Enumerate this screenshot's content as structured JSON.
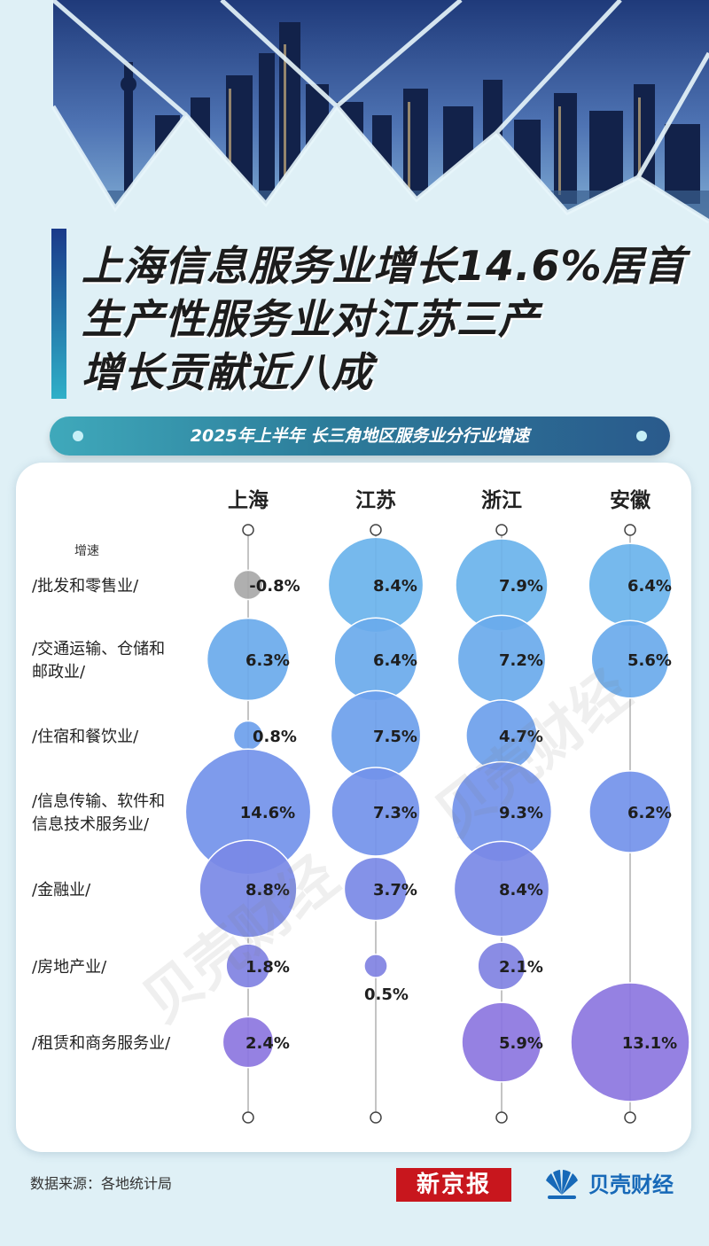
{
  "header": {
    "title_lines": [
      "上海信息服务业增长14.6%居首",
      "生产性服务业对江苏三产",
      "增长贡献近八成"
    ]
  },
  "subtitle": "2025年上半年 长三角地区服务业分行业增速",
  "chart_data": {
    "type": "bubble",
    "title": "2025年上半年 长三角地区服务业分行业增速",
    "row_axis_label": "增速",
    "columns": [
      "上海",
      "江苏",
      "浙江",
      "安徽"
    ],
    "rows": [
      "/批发和零售业/",
      "/交通运输、仓储和\n邮政业/",
      "/住宿和餐饮业/",
      "/信息传输、软件和\n信息技术服务业/",
      "/金融业/",
      "/房地产业/",
      "/租赁和商务服务业/"
    ],
    "values": [
      [
        -0.8,
        8.4,
        7.9,
        6.4
      ],
      [
        6.3,
        6.4,
        7.2,
        5.6
      ],
      [
        0.8,
        7.5,
        4.7,
        null
      ],
      [
        14.6,
        7.3,
        9.3,
        6.2
      ],
      [
        8.8,
        3.7,
        8.4,
        null
      ],
      [
        1.8,
        0.5,
        2.1,
        null
      ],
      [
        2.4,
        null,
        5.9,
        13.1
      ]
    ],
    "labels": [
      [
        "-0.8%",
        "8.4%",
        "7.9%",
        "6.4%"
      ],
      [
        "6.3%",
        "6.4%",
        "7.2%",
        "5.6%"
      ],
      [
        "0.8%",
        "7.5%",
        "4.7%",
        null
      ],
      [
        "14.6%",
        "7.3%",
        "9.3%",
        "6.2%"
      ],
      [
        "8.8%",
        "3.7%",
        "8.4%",
        null
      ],
      [
        "1.8%",
        "0.5%",
        "2.1%",
        null
      ],
      [
        "2.4%",
        null,
        "5.9%",
        "13.1%"
      ]
    ],
    "row_colors": [
      "#6ab3ec",
      "#6aaaec",
      "#6d9fec",
      "#7393ea",
      "#7a89e6",
      "#8082e2",
      "#8c76df"
    ],
    "negative_color": "#a8a8a8"
  },
  "footer": {
    "source": "数据来源：各地统计局",
    "logo_xjb": "新京报",
    "logo_bk": "贝壳财经"
  },
  "watermark": "贝壳财经"
}
